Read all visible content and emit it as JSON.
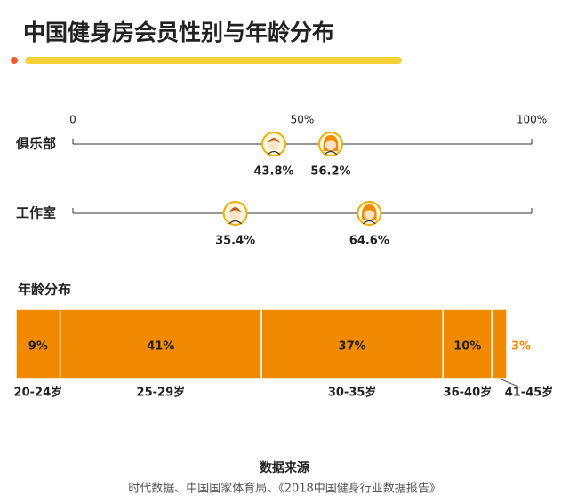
{
  "title": "中国健身房会员性别与年龄分布",
  "chart_data": [
    {
      "type": "dot",
      "categories": [
        "俱乐部",
        "工作室"
      ],
      "series": [
        {
          "color": "#f0b000",
          "values": [
            43.8,
            35.4
          ],
          "value_labels": [
            "43.8%",
            "35.4%"
          ]
        },
        {
          "color": "#f0b000",
          "values": [
            56.2,
            64.6
          ],
          "value_labels": [
            "56.2%",
            "64.6%"
          ]
        }
      ],
      "xlim": [
        0,
        100
      ],
      "xticks": [
        0,
        {
          "value": 50,
          "label": "50%"
        },
        {
          "value": 100,
          "label": "100%"
        }
      ]
    },
    {
      "type": "stacked-bar",
      "title": "年龄分布",
      "categories": [
        "20-24岁",
        "25-29岁",
        "30-35岁",
        "36-40岁",
        "41-45岁"
      ],
      "values": [
        9,
        41,
        37,
        10,
        3
      ],
      "value_labels": [
        "9%",
        "41%",
        "37%",
        "10%",
        "3%"
      ],
      "color": "#f28a00"
    }
  ],
  "source": {
    "title": "数据来源",
    "text": "时代数据、中国国家体育局、《2018中国健身行业数据报告》"
  }
}
